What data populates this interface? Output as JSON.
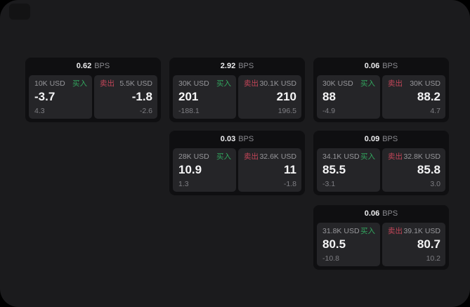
{
  "labels": {
    "buy": "买入",
    "sell": "卖出",
    "bps_unit": "BPS"
  },
  "colors": {
    "buy_green": "#32a65e",
    "sell_red": "#c24558",
    "window_bg": "#1b1b1d",
    "card_bg": "#0f0f11",
    "panel_bg": "#252528",
    "corner_bg": "#131314"
  },
  "cards": [
    {
      "bps": "0.62",
      "row": 1,
      "col": 1,
      "buy": {
        "notional": "10K USD",
        "price": "-3.7",
        "delta": "4.3"
      },
      "sell": {
        "notional": "5.5K USD",
        "price": "-1.8",
        "delta": "-2.6"
      }
    },
    {
      "bps": "2.92",
      "row": 1,
      "col": 2,
      "buy": {
        "notional": "30K USD",
        "price": "201",
        "delta": "-188.1"
      },
      "sell": {
        "notional": "30.1K USD",
        "price": "210",
        "delta": "196.5"
      }
    },
    {
      "bps": "0.06",
      "row": 1,
      "col": 3,
      "buy": {
        "notional": "30K USD",
        "price": "88",
        "delta": "-4.9"
      },
      "sell": {
        "notional": "30K USD",
        "price": "88.2",
        "delta": "4.7"
      }
    },
    {
      "bps": "0.03",
      "row": 2,
      "col": 2,
      "buy": {
        "notional": "28K USD",
        "price": "10.9",
        "delta": "1.3"
      },
      "sell": {
        "notional": "32.6K USD",
        "price": "11",
        "delta": "-1.8"
      }
    },
    {
      "bps": "0.09",
      "row": 2,
      "col": 3,
      "buy": {
        "notional": "34.1K USD",
        "price": "85.5",
        "delta": "-3.1"
      },
      "sell": {
        "notional": "32.8K USD",
        "price": "85.8",
        "delta": "3.0"
      }
    },
    {
      "bps": "0.06",
      "row": 3,
      "col": 3,
      "buy": {
        "notional": "31.8K USD",
        "price": "80.5",
        "delta": "-10.8"
      },
      "sell": {
        "notional": "39.1K USD",
        "price": "80.7",
        "delta": "10.2"
      }
    }
  ]
}
